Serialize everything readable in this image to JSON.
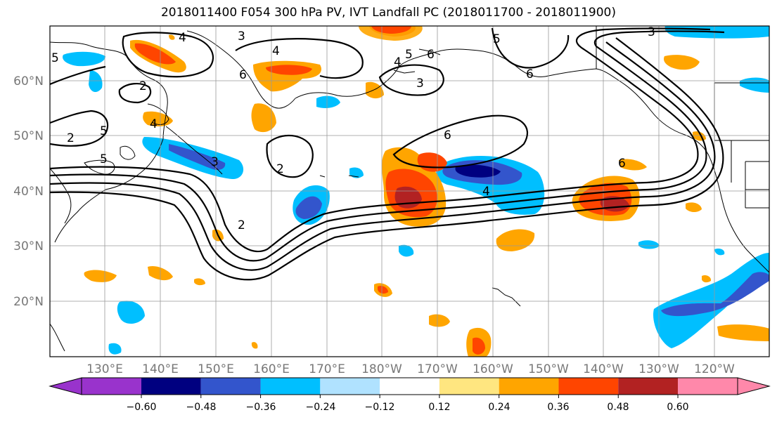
{
  "title": "2018011400 F054 300 hPa PV, IVT Landfall PC (2018011700 - 2018011900)",
  "lat_labels": [
    "60°N",
    "50°N",
    "40°N",
    "30°N",
    "20°N"
  ],
  "lon_labels": [
    "130°E",
    "140°E",
    "150°E",
    "160°E",
    "170°E",
    "180°W",
    "170°W",
    "160°W",
    "150°W",
    "140°W",
    "130°W",
    "120°W"
  ],
  "colorbar": {
    "tick_labels": [
      "−0.60",
      "−0.48",
      "−0.36",
      "−0.24",
      "−0.12",
      "0.12",
      "0.24",
      "0.36",
      "0.48",
      "0.60"
    ],
    "colors": [
      "#9933cc",
      "#000080",
      "#3355cc",
      "#00bfff",
      "#b0e2ff",
      "#ffffff",
      "#ffe680",
      "#ffa500",
      "#ff4500",
      "#b22222",
      "#ff88aa"
    ]
  },
  "contour_labels": [
    "4",
    "3",
    "4",
    "5",
    "6",
    "5",
    "4",
    "3",
    "5",
    "6",
    "6",
    "3",
    "2",
    "4",
    "2",
    "5",
    "5",
    "2",
    "6",
    "4",
    "6",
    "3",
    "2"
  ],
  "colors": {
    "neg_strong": "#000080",
    "neg_mid": "#3355cc",
    "neg_light": "#00bfff",
    "pos_light": "#ffa500",
    "pos_mid": "#ff4500",
    "pos_strong": "#b22222",
    "pos_pale": "#ffe680"
  }
}
